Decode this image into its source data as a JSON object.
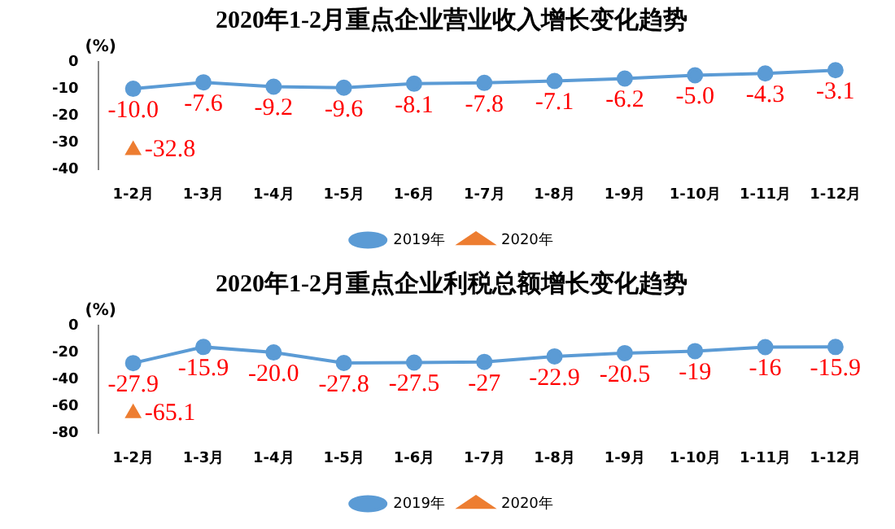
{
  "chart_data": [
    {
      "type": "line",
      "title": "2020年1-2月重点企业营业收入增长变化趋势",
      "ylabel": "(%)",
      "categories": [
        "1-2月",
        "1-3月",
        "1-4月",
        "1-5月",
        "1-6月",
        "1-7月",
        "1-8月",
        "1-9月",
        "1-10月",
        "1-11月",
        "1-12月"
      ],
      "series": [
        {
          "name": "2019年",
          "color": "#5b9bd5",
          "marker": "circle",
          "values": [
            -10.0,
            -7.6,
            -9.2,
            -9.6,
            -8.1,
            -7.8,
            -7.1,
            -6.2,
            -5.0,
            -4.3,
            -3.1
          ],
          "value_labels": [
            "-10.0",
            "-7.6",
            "-9.2",
            "-9.6",
            "-8.1",
            "-7.8",
            "-7.1",
            "-6.2",
            "-5.0",
            "-4.3",
            "-3.1"
          ]
        },
        {
          "name": "2020年",
          "color": "#ed7d31",
          "marker": "triangle",
          "values": [
            -32.8,
            null,
            null,
            null,
            null,
            null,
            null,
            null,
            null,
            null,
            null
          ],
          "value_labels": [
            "-32.8",
            null,
            null,
            null,
            null,
            null,
            null,
            null,
            null,
            null,
            null
          ]
        }
      ],
      "ylim": [
        -40,
        0
      ],
      "yticks": [
        -40,
        -30,
        -20,
        -10,
        0
      ],
      "grid": false,
      "legend": "bottom"
    },
    {
      "type": "line",
      "title": "2020年1-2月重点企业利税总额增长变化趋势",
      "ylabel": "(%)",
      "categories": [
        "1-2月",
        "1-3月",
        "1-4月",
        "1-5月",
        "1-6月",
        "1-7月",
        "1-8月",
        "1-9月",
        "1-10月",
        "1-11月",
        "1-12月"
      ],
      "series": [
        {
          "name": "2019年",
          "color": "#5b9bd5",
          "marker": "circle",
          "values": [
            -27.9,
            -15.9,
            -20.0,
            -27.8,
            -27.5,
            -27,
            -22.9,
            -20.5,
            -19,
            -16,
            -15.9
          ],
          "value_labels": [
            "-27.9",
            "-15.9",
            "-20.0",
            "-27.8",
            "-27.5",
            "-27",
            "-22.9",
            "-20.5",
            "-19",
            "-16",
            "-15.9"
          ]
        },
        {
          "name": "2020年",
          "color": "#ed7d31",
          "marker": "triangle",
          "values": [
            -65.1,
            null,
            null,
            null,
            null,
            null,
            null,
            null,
            null,
            null,
            null
          ],
          "value_labels": [
            "-65.1",
            null,
            null,
            null,
            null,
            null,
            null,
            null,
            null,
            null,
            null
          ]
        }
      ],
      "ylim": [
        -80,
        0
      ],
      "yticks": [
        -80,
        -60,
        -40,
        -20,
        0
      ],
      "grid": false,
      "legend": "bottom"
    }
  ]
}
